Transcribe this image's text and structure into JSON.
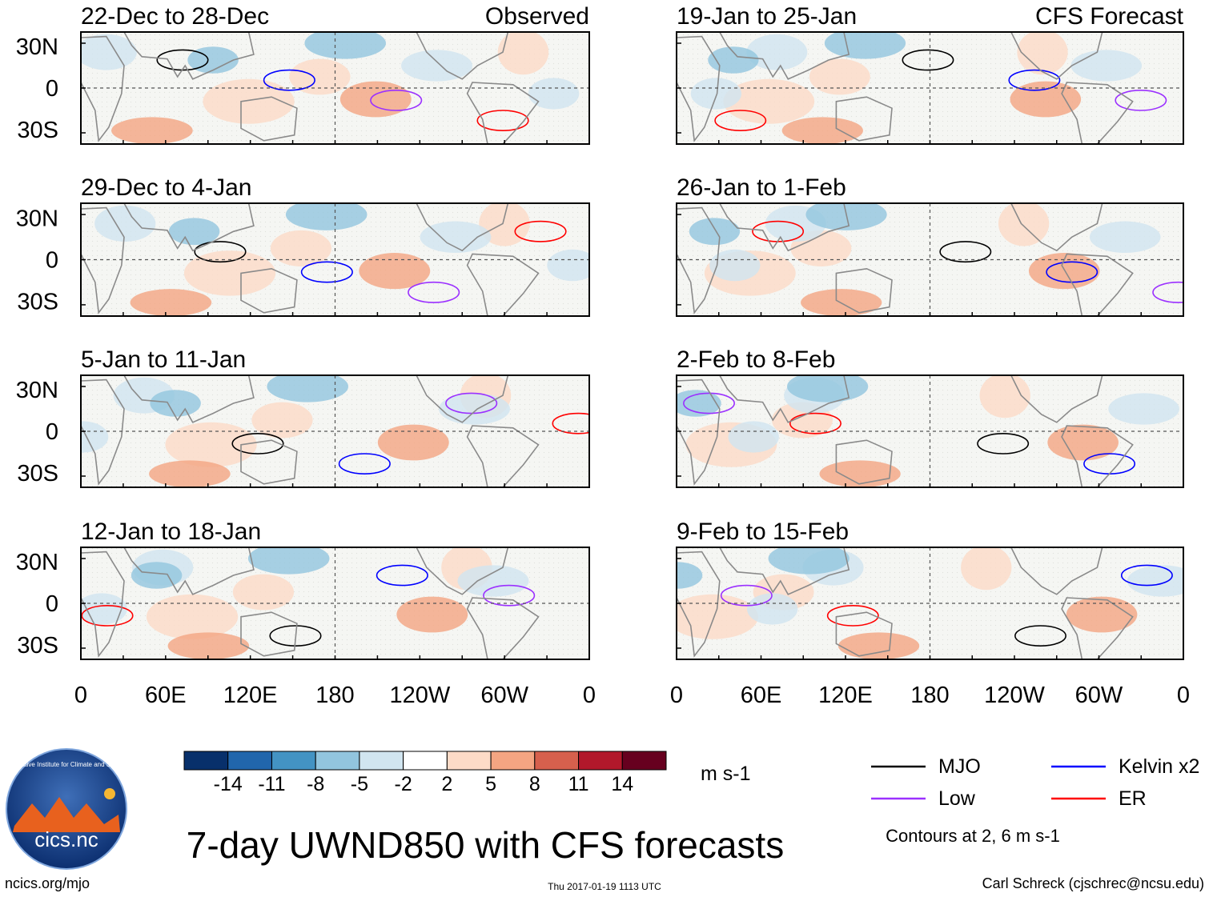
{
  "chart_data": {
    "type": "heatmap",
    "title": "7-day UWND850 with CFS forecasts",
    "variable": "850-hPa zonal wind anomaly",
    "units": "m s-1",
    "columns": [
      {
        "label": "Observed",
        "panels": [
          {
            "period": "22-Dec to 28-Dec"
          },
          {
            "period": "29-Dec to 4-Jan"
          },
          {
            "period": "5-Jan to 11-Jan"
          },
          {
            "period": "12-Jan to 18-Jan"
          }
        ]
      },
      {
        "label": "CFS Forecast",
        "panels": [
          {
            "period": "19-Jan to 25-Jan"
          },
          {
            "period": "26-Jan to 1-Feb"
          },
          {
            "period": "2-Feb to 8-Feb"
          },
          {
            "period": "9-Feb to 15-Feb"
          }
        ]
      }
    ],
    "y_ticks": [
      "30N",
      "0",
      "30S"
    ],
    "x_ticks": [
      "0",
      "60E",
      "120E",
      "180",
      "120W",
      "60W",
      "0"
    ],
    "colorbar": {
      "levels": [
        "-14",
        "-11",
        "-8",
        "-5",
        "-2",
        "2",
        "5",
        "8",
        "11",
        "14"
      ],
      "colors": [
        "#08306b",
        "#2166ac",
        "#4393c3",
        "#92c5de",
        "#d1e5f0",
        "#ffffff",
        "#fddbc7",
        "#f4a582",
        "#d6604d",
        "#b2182b",
        "#67001f"
      ]
    },
    "legend": [
      {
        "label": "MJO",
        "color": "#000000"
      },
      {
        "label": "Kelvin x2",
        "color": "#0000ff"
      },
      {
        "label": "Low",
        "color": "#9b30ff"
      },
      {
        "label": "ER",
        "color": "#ff0000"
      }
    ],
    "contour_note": "Contours at 2, 6 m s-1"
  },
  "footer": {
    "logo_text": "cics.nc",
    "logo_ring": "Cooperative Institute for Climate and Satellites",
    "url": "ncics.org/mjo",
    "timestamp": "Thu 2017-01-19 1113 UTC",
    "author": "Carl Schreck (cjschrec@ncsu.edu)"
  }
}
